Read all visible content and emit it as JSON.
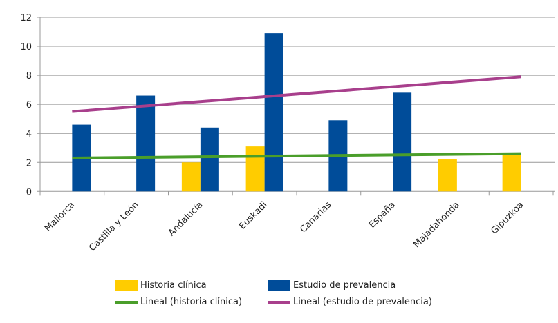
{
  "chart_data": {
    "type": "bar",
    "title": "",
    "xlabel": "",
    "ylabel": "",
    "ylim": [
      0,
      12
    ],
    "yticks": [
      0,
      2,
      4,
      6,
      8,
      10,
      12
    ],
    "grid": true,
    "legend_placement": "bottom",
    "categories": [
      "Mallorca",
      "Castilla y León",
      "Andalucía",
      "Euskadi",
      "Canarias",
      "España",
      "Majadahonda",
      "Gipuzkoa"
    ],
    "series": [
      {
        "name": "Historia clínica",
        "color": "#ffcc00",
        "values": [
          null,
          null,
          2.0,
          3.1,
          null,
          null,
          2.2,
          2.5
        ]
      },
      {
        "name": "Estudio de prevalencia",
        "color": "#004c99",
        "values": [
          4.6,
          6.6,
          4.4,
          10.9,
          4.9,
          6.8,
          null,
          null
        ]
      }
    ],
    "trendlines": [
      {
        "name": "Lineal (historia clínica)",
        "color": "#4a9e2a",
        "start": 2.3,
        "end": 2.6
      },
      {
        "name": "Lineal (estudio de prevalencia)",
        "color": "#a83f8c",
        "start": 5.5,
        "end": 7.9
      }
    ]
  }
}
